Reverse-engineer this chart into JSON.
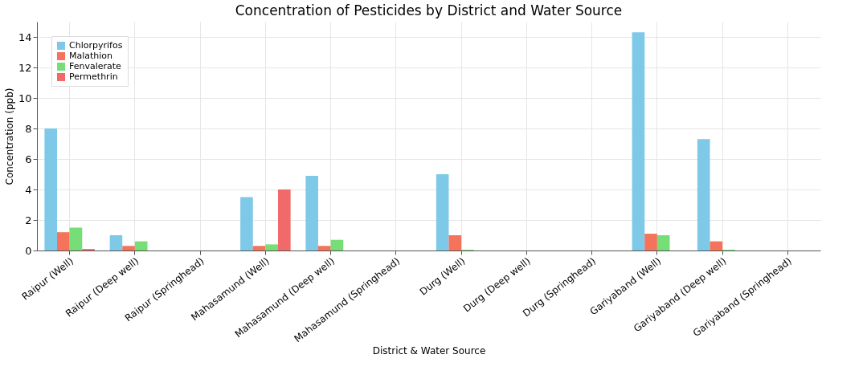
{
  "chart_data": {
    "type": "bar",
    "title": "Concentration of Pesticides by District and Water Source",
    "xlabel": "District & Water Source",
    "ylabel": "Concentration (ppb)",
    "categories": [
      "Raipur (Well)",
      "Raipur (Deep well)",
      "Raipur (Springhead)",
      "Mahasamund (Well)",
      "Mahasamund (Deep well)",
      "Mahasamund (Springhead)",
      "Durg (Well)",
      "Durg (Deep well)",
      "Durg (Springhead)",
      "Gariyaband (Well)",
      "Gariyaband (Deep well)",
      "Gariyaband (Springhead)"
    ],
    "series": [
      {
        "name": "Chlorpyrifos",
        "color": "#7ec8e8",
        "values": [
          8.0,
          1.0,
          0,
          3.5,
          4.9,
          0,
          5.0,
          0,
          0,
          14.3,
          7.3,
          0
        ]
      },
      {
        "name": "Malathion",
        "color": "#f4735a",
        "values": [
          1.2,
          0.3,
          0,
          0.3,
          0.3,
          0,
          1.0,
          0,
          0,
          1.1,
          0.6,
          0
        ]
      },
      {
        "name": "Fenvalerate",
        "color": "#77dd77",
        "values": [
          1.5,
          0.6,
          0,
          0.4,
          0.7,
          0,
          0.05,
          0,
          0,
          1.0,
          0.05,
          0
        ]
      },
      {
        "name": "Permethrin",
        "color": "#f06a6a",
        "values": [
          0.1,
          0,
          0,
          4.0,
          0,
          0,
          0,
          0,
          0,
          0,
          0,
          0
        ]
      }
    ],
    "ylim": [
      0,
      15
    ],
    "yticks": [
      0,
      2,
      4,
      6,
      8,
      10,
      12,
      14
    ],
    "grid": true,
    "legend": "top left"
  }
}
